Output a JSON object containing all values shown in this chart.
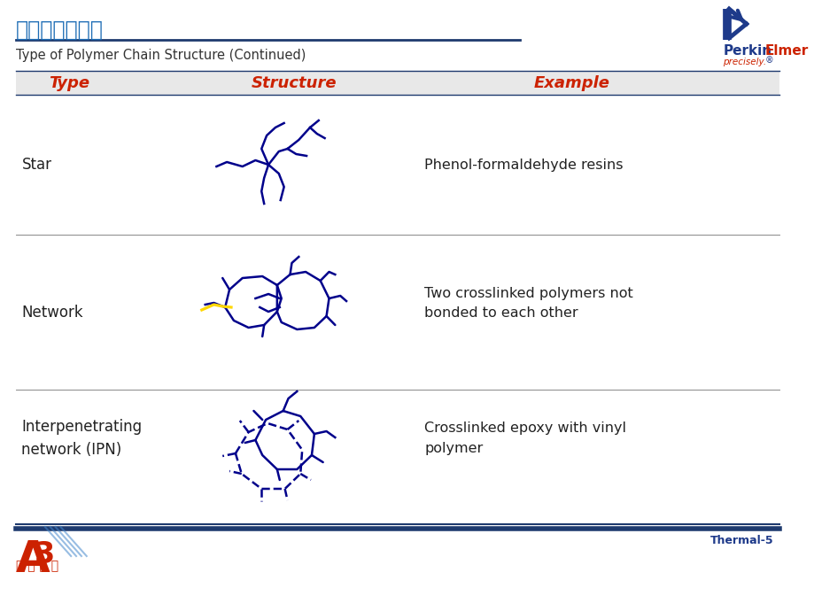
{
  "bg_color": "#ffffff",
  "title_chinese": "高分子材料結構",
  "title_color": "#1E6DB5",
  "title_underline_color": "#1E3A6E",
  "subtitle": "Type of Polymer Chain Structure (Continued)",
  "header_type": "Type",
  "header_structure": "Structure",
  "header_example": "Example",
  "header_color": "#CC2200",
  "header_bg": "#e8e8e8",
  "row0_type": "Star",
  "row0_example": "Phenol-formaldehyde resins",
  "row1_type": "Network",
  "row1_example": "Two crosslinked polymers not\nbonded to each other",
  "row2_type": "Interpenetrating\nnetwork (IPN)",
  "row2_example": "Crosslinked epoxy with vinyl\npolymer",
  "footer_text": "Thermal-5",
  "footer_color": "#1E3A8A",
  "line_color_dark": "#1E3A6E",
  "line_color_light": "#888888",
  "blue": "#00008B",
  "yellow": "#FFD700",
  "red": "#CC2200",
  "perkin_blue": "#1E3A8A",
  "footer_logo_red": "#CC2200",
  "footer_logo_blue": "#4488CC"
}
